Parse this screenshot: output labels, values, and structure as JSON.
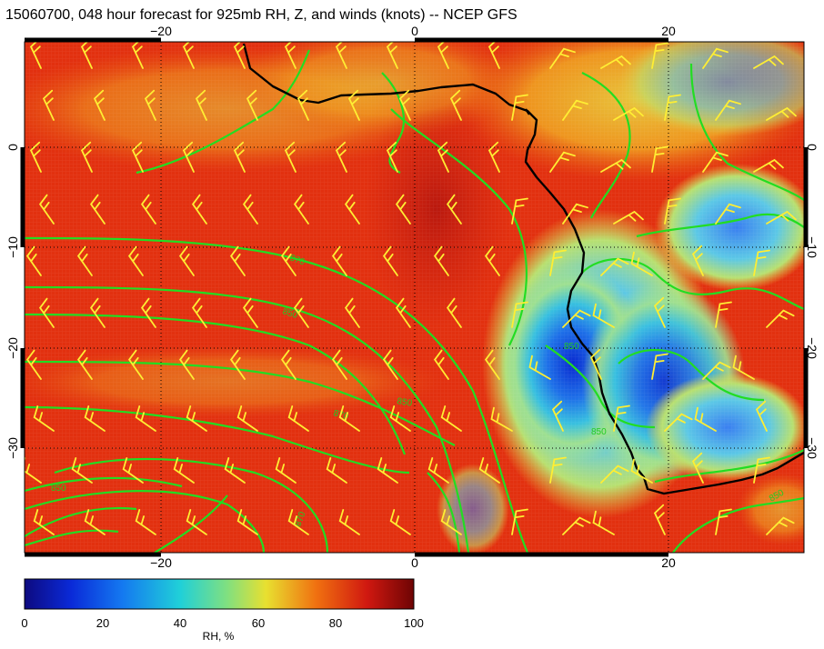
{
  "title": "15060700, 048 hour forecast for 925mb RH, Z, and winds (knots) -- NCEP GFS",
  "map": {
    "lon_ticks_top": [
      "−20",
      "0",
      "20"
    ],
    "lon_ticks_bottom": [
      "−20",
      "0",
      "20"
    ],
    "lat_ticks_left": [
      "0",
      "−10",
      "−20",
      "−30"
    ],
    "lat_ticks_right": [
      "0",
      "−10",
      "−20",
      "−30"
    ],
    "lon_range": [
      -30,
      31
    ],
    "lat_range": [
      -40,
      10
    ],
    "contour_labels": [
      "870",
      "850",
      "850",
      "870",
      "850",
      "850",
      "850",
      "870",
      "850"
    ],
    "colors": {
      "coast": "#000000",
      "contours": "#22dd22",
      "wind_barbs": "#ffee33"
    }
  },
  "colorbar": {
    "label": "RH, %",
    "ticks": [
      "0",
      "20",
      "40",
      "60",
      "80",
      "100"
    ],
    "range": [
      0,
      100
    ]
  }
}
